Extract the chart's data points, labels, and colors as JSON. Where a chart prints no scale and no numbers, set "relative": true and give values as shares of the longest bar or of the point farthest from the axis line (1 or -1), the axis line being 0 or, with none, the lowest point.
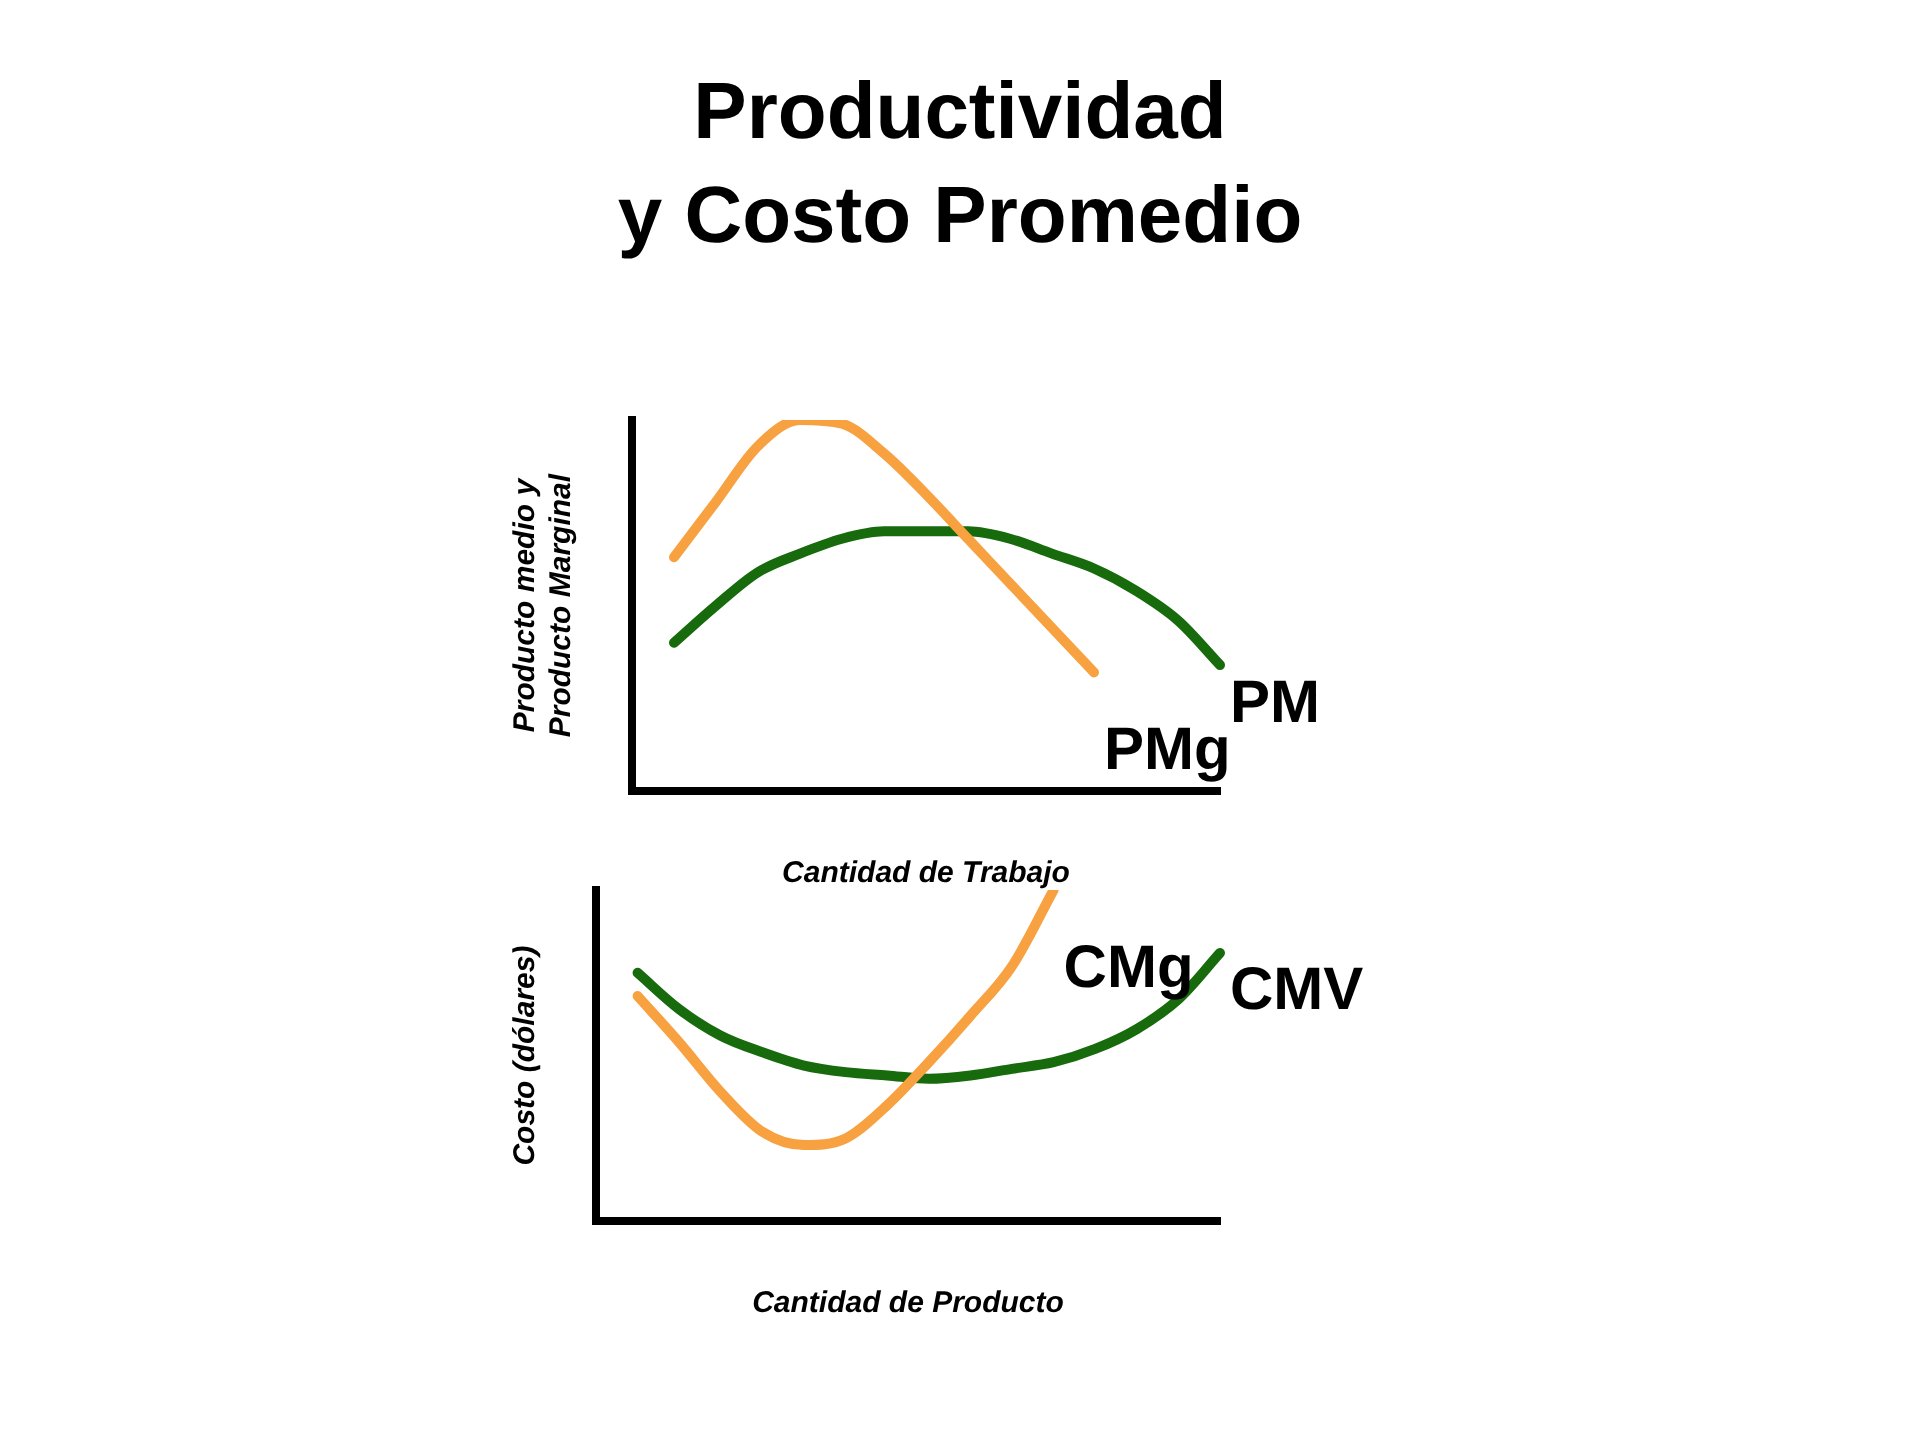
{
  "chart_data": [
    {
      "type": "line",
      "title": "Productividad\ny Costo Promedio",
      "relative": true,
      "xlabel": "Cantidad de Trabajo",
      "ylabel": "Producto medio y\nProducto Marginal",
      "grid": false,
      "legend": false,
      "categories": [
        null,
        null,
        null,
        null,
        null,
        null,
        null,
        null,
        null,
        null,
        null,
        null,
        null,
        null,
        null
      ],
      "series": [
        {
          "name": "PMg",
          "color": "#f7a140",
          "values": [
            null,
            0.63,
            0.78,
            0.93,
            1.0,
            0.99,
            0.91,
            0.8,
            0.68,
            0.56,
            0.44,
            0.32,
            null,
            null,
            null
          ]
        },
        {
          "name": "PM",
          "color": "#176b0c",
          "values": [
            null,
            0.4,
            0.5,
            0.59,
            0.64,
            0.68,
            0.7,
            0.7,
            0.7,
            0.68,
            0.64,
            0.6,
            0.54,
            0.46,
            0.34
          ]
        }
      ]
    },
    {
      "type": "line",
      "relative": true,
      "xlabel": "Cantidad de Producto",
      "ylabel": "Costo (dólares)",
      "grid": false,
      "legend": false,
      "categories": [
        null,
        null,
        null,
        null,
        null,
        null,
        null,
        null,
        null,
        null,
        null,
        null,
        null,
        null,
        null,
        null
      ],
      "series": [
        {
          "name": "CMg",
          "color": "#f7a140",
          "values": [
            null,
            0.68,
            0.54,
            0.39,
            0.27,
            0.23,
            0.25,
            0.35,
            0.48,
            0.62,
            0.77,
            1.0,
            null,
            null,
            null,
            null
          ]
        },
        {
          "name": "CMV",
          "color": "#176b0c",
          "values": [
            null,
            0.75,
            0.64,
            0.56,
            0.51,
            0.47,
            0.45,
            0.44,
            0.43,
            0.44,
            0.46,
            0.48,
            0.52,
            0.58,
            0.67,
            0.81
          ]
        }
      ]
    }
  ]
}
